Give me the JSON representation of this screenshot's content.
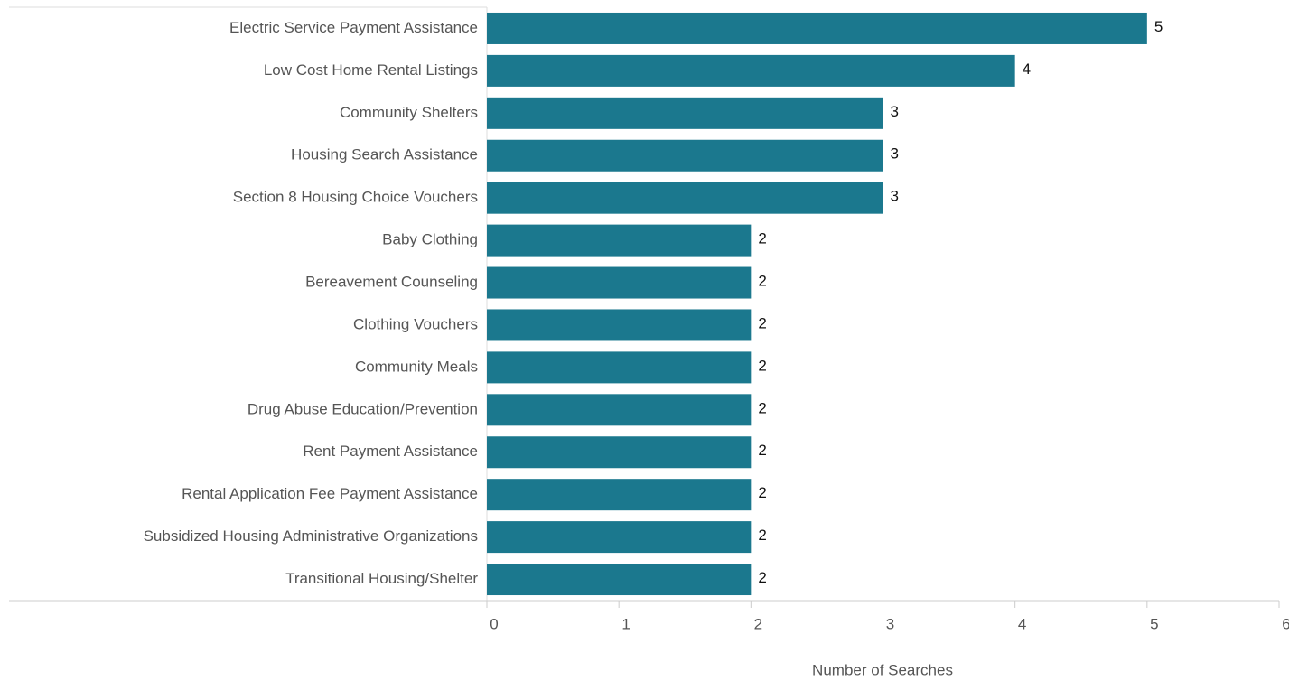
{
  "chart_data": {
    "type": "bar",
    "orientation": "horizontal",
    "xlabel": "Number of Searches",
    "categories": [
      "Electric Service Payment Assistance",
      "Low Cost Home Rental Listings",
      "Community Shelters",
      "Housing Search Assistance",
      "Section 8 Housing Choice Vouchers",
      "Baby Clothing",
      "Bereavement Counseling",
      "Clothing Vouchers",
      "Community Meals",
      "Drug Abuse Education/Prevention",
      "Rent Payment Assistance",
      "Rental Application Fee Payment Assistance",
      "Subsidized Housing Administrative Organizations",
      "Transitional Housing/Shelter"
    ],
    "values": [
      5,
      4,
      3,
      3,
      3,
      2,
      2,
      2,
      2,
      2,
      2,
      2,
      2,
      2
    ],
    "color": "#1b788e",
    "xlim": [
      0,
      6
    ],
    "xticks": [
      0,
      1,
      2,
      3,
      4,
      5,
      6
    ],
    "grid": false
  }
}
